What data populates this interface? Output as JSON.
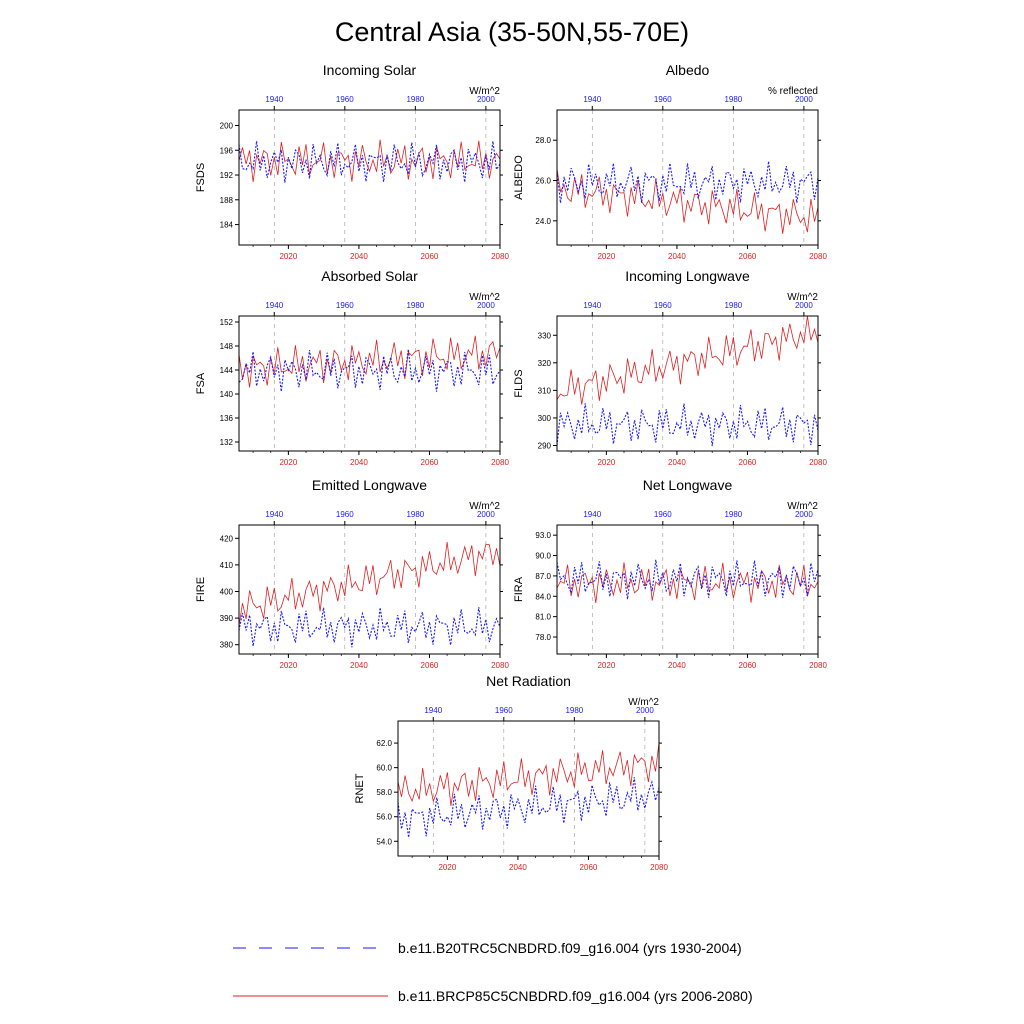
{
  "title": "Central Asia (35-50N,55-70E)",
  "colors": {
    "rcp": "#e02020",
    "hist": "#1a1aff"
  },
  "legend": [
    {
      "label": "b.e11.B20TRC5CNBDRD.f09_g16.004 (yrs 1930-2004)",
      "style": "dashed",
      "color": "#1a1aff"
    },
    {
      "label": "b.e11.BRCP85C5CNBDRD.f09_g16.004 (yrs 2006-2080)",
      "style": "solid",
      "color": "#e02020"
    }
  ],
  "chart_data": [
    {
      "type": "line",
      "title": "Incoming Solar",
      "units": "W/m^2",
      "ylabel": "FSDS",
      "xlim_bottom": [
        2006,
        2080
      ],
      "xticks_bottom": [
        2020,
        2040,
        2060,
        2080
      ],
      "xlim_top": [
        1930,
        2004
      ],
      "xticks_top": [
        1940,
        1960,
        1980,
        2000
      ],
      "ylim": [
        180.7,
        202.5
      ],
      "yticks": [
        184,
        188,
        192,
        196,
        200
      ],
      "ytick_labels": [
        "184",
        "188",
        "192",
        "196",
        "200"
      ],
      "grid": "dashed vertical lines at top-axis ticks",
      "series": [
        {
          "name": "b.e11.BRCP85C5CNBDRD.f09_g16.004 (yrs 2006-2080)",
          "axis": "bottom",
          "style": "solid",
          "color": "#e02020",
          "y0": 194.3,
          "start": 2006,
          "end": 2080
        },
        {
          "name": "b.e11.B20TRC5CNBDRD.f09_g16.004 (yrs 1930-2004)",
          "axis": "top",
          "style": "dashed",
          "color": "#1a1aff",
          "y0": 194.1,
          "start": 1930,
          "end": 2004
        }
      ]
    },
    {
      "type": "line",
      "title": "Albedo",
      "units": "% reflected",
      "ylabel": "ALBEDO",
      "xlim_bottom": [
        2006,
        2080
      ],
      "xticks_bottom": [
        2020,
        2040,
        2060,
        2080
      ],
      "xlim_top": [
        1930,
        2004
      ],
      "xticks_top": [
        1940,
        1960,
        1980,
        2000
      ],
      "ylim": [
        22.8,
        29.5
      ],
      "yticks": [
        24,
        26,
        28
      ],
      "ytick_labels": [
        "24.0",
        "26.0",
        "28.0"
      ],
      "grid": "dashed vertical lines at top-axis ticks",
      "series": [
        {
          "name": "b.e11.BRCP85C5CNBDRD.f09_g16.004 (yrs 2006-2080)",
          "axis": "bottom",
          "style": "solid",
          "color": "#e02020",
          "y0": 25.6,
          "start": 2006,
          "end": 2080
        },
        {
          "name": "b.e11.B20TRC5CNBDRD.f09_g16.004 (yrs 1930-2004)",
          "axis": "top",
          "style": "dashed",
          "color": "#1a1aff",
          "y0": 25.9,
          "start": 1930,
          "end": 2004
        }
      ]
    },
    {
      "type": "line",
      "title": "Absorbed Solar",
      "units": "W/m^2",
      "ylabel": "FSA",
      "xlim_bottom": [
        2006,
        2080
      ],
      "xticks_bottom": [
        2020,
        2040,
        2060,
        2080
      ],
      "xlim_top": [
        1930,
        2004
      ],
      "xticks_top": [
        1940,
        1960,
        1980,
        2000
      ],
      "ylim": [
        130.5,
        153
      ],
      "yticks": [
        132,
        136,
        140,
        144,
        148,
        152
      ],
      "ytick_labels": [
        "132",
        "136",
        "140",
        "144",
        "148",
        "152"
      ],
      "grid": "dashed vertical lines at top-axis ticks",
      "series": [
        {
          "name": "b.e11.BRCP85C5CNBDRD.f09_g16.004 (yrs 2006-2080)",
          "axis": "bottom",
          "style": "solid",
          "color": "#e02020",
          "y0": 144.2,
          "start": 2006,
          "end": 2080
        },
        {
          "name": "b.e11.B20TRC5CNBDRD.f09_g16.004 (yrs 1930-2004)",
          "axis": "top",
          "style": "dashed",
          "color": "#1a1aff",
          "y0": 143.9,
          "start": 1930,
          "end": 2004
        }
      ]
    },
    {
      "type": "line",
      "title": "Incoming Longwave",
      "units": "W/m^2",
      "ylabel": "FLDS",
      "xlim_bottom": [
        2006,
        2080
      ],
      "xticks_bottom": [
        2020,
        2040,
        2060,
        2080
      ],
      "xlim_top": [
        1930,
        2004
      ],
      "xticks_top": [
        1940,
        1960,
        1980,
        2000
      ],
      "ylim": [
        288,
        337
      ],
      "yticks": [
        290,
        300,
        310,
        320,
        330
      ],
      "ytick_labels": [
        "290",
        "300",
        "310",
        "320",
        "330"
      ],
      "grid": "dashed vertical lines at top-axis ticks",
      "series": [
        {
          "name": "b.e11.BRCP85C5CNBDRD.f09_g16.004 (yrs 2006-2080)",
          "axis": "bottom",
          "style": "solid",
          "color": "#e02020",
          "y0": 309.5,
          "start": 2006,
          "end": 2080
        },
        {
          "name": "b.e11.B20TRC5CNBDRD.f09_g16.004 (yrs 1930-2004)",
          "axis": "top",
          "style": "dashed",
          "color": "#1a1aff",
          "y0": 297.6,
          "start": 1930,
          "end": 2004
        }
      ]
    },
    {
      "type": "line",
      "title": "Emitted Longwave",
      "units": "W/m^2",
      "ylabel": "FIRE",
      "xlim_bottom": [
        2006,
        2080
      ],
      "xticks_bottom": [
        2020,
        2040,
        2060,
        2080
      ],
      "xlim_top": [
        1930,
        2004
      ],
      "xticks_top": [
        1940,
        1960,
        1980,
        2000
      ],
      "ylim": [
        376.5,
        425
      ],
      "yticks": [
        380,
        390,
        400,
        410,
        420
      ],
      "ytick_labels": [
        "380",
        "390",
        "400",
        "410",
        "420"
      ],
      "grid": "dashed vertical lines at top-axis ticks",
      "series": [
        {
          "name": "b.e11.BRCP85C5CNBDRD.f09_g16.004 (yrs 2006-2080)",
          "axis": "bottom",
          "style": "solid",
          "color": "#e02020",
          "y0": 393.5,
          "start": 2006,
          "end": 2080
        },
        {
          "name": "b.e11.B20TRC5CNBDRD.f09_g16.004 (yrs 1930-2004)",
          "axis": "top",
          "style": "dashed",
          "color": "#1a1aff",
          "y0": 386.7,
          "start": 1930,
          "end": 2004
        }
      ]
    },
    {
      "type": "line",
      "title": "Net Longwave",
      "units": "W/m^2",
      "ylabel": "FIRA",
      "xlim_bottom": [
        2006,
        2080
      ],
      "xticks_bottom": [
        2020,
        2040,
        2060,
        2080
      ],
      "xlim_top": [
        1930,
        2004
      ],
      "xticks_top": [
        1940,
        1960,
        1980,
        2000
      ],
      "ylim": [
        75.5,
        94.5
      ],
      "yticks": [
        78,
        81,
        84,
        87,
        90,
        93
      ],
      "ytick_labels": [
        "78.0",
        "81.0",
        "84.0",
        "87.0",
        "90.0",
        "93.0"
      ],
      "grid": "dashed vertical lines at top-axis ticks",
      "series": [
        {
          "name": "b.e11.BRCP85C5CNBDRD.f09_g16.004 (yrs 2006-2080)",
          "axis": "bottom",
          "style": "solid",
          "color": "#e02020",
          "y0": 86.0,
          "start": 2006,
          "end": 2080
        },
        {
          "name": "b.e11.B20TRC5CNBDRD.f09_g16.004 (yrs 1930-2004)",
          "axis": "top",
          "style": "dashed",
          "color": "#1a1aff",
          "y0": 86.5,
          "start": 1930,
          "end": 2004
        }
      ]
    },
    {
      "type": "line",
      "title": "Net Radiation",
      "units": "W/m^2",
      "ylabel": "RNET",
      "xlim_bottom": [
        2006,
        2080
      ],
      "xticks_bottom": [
        2020,
        2040,
        2060,
        2080
      ],
      "xlim_top": [
        1930,
        2004
      ],
      "xticks_top": [
        1940,
        1960,
        1980,
        2000
      ],
      "ylim": [
        52.8,
        63.8
      ],
      "yticks": [
        54,
        56,
        58,
        60,
        62
      ],
      "ytick_labels": [
        "54.0",
        "56.0",
        "58.0",
        "60.0",
        "62.0"
      ],
      "grid": "dashed vertical lines at top-axis ticks",
      "series": [
        {
          "name": "b.e11.BRCP85C5CNBDRD.f09_g16.004 (yrs 2006-2080)",
          "axis": "bottom",
          "style": "solid",
          "color": "#e02020",
          "y0": 58.0,
          "start": 2006,
          "end": 2080
        },
        {
          "name": "b.e11.B20TRC5CNBDRD.f09_g16.004 (yrs 1930-2004)",
          "axis": "top",
          "style": "dashed",
          "color": "#1a1aff",
          "y0": 55.8,
          "start": 1930,
          "end": 2004
        }
      ]
    }
  ]
}
